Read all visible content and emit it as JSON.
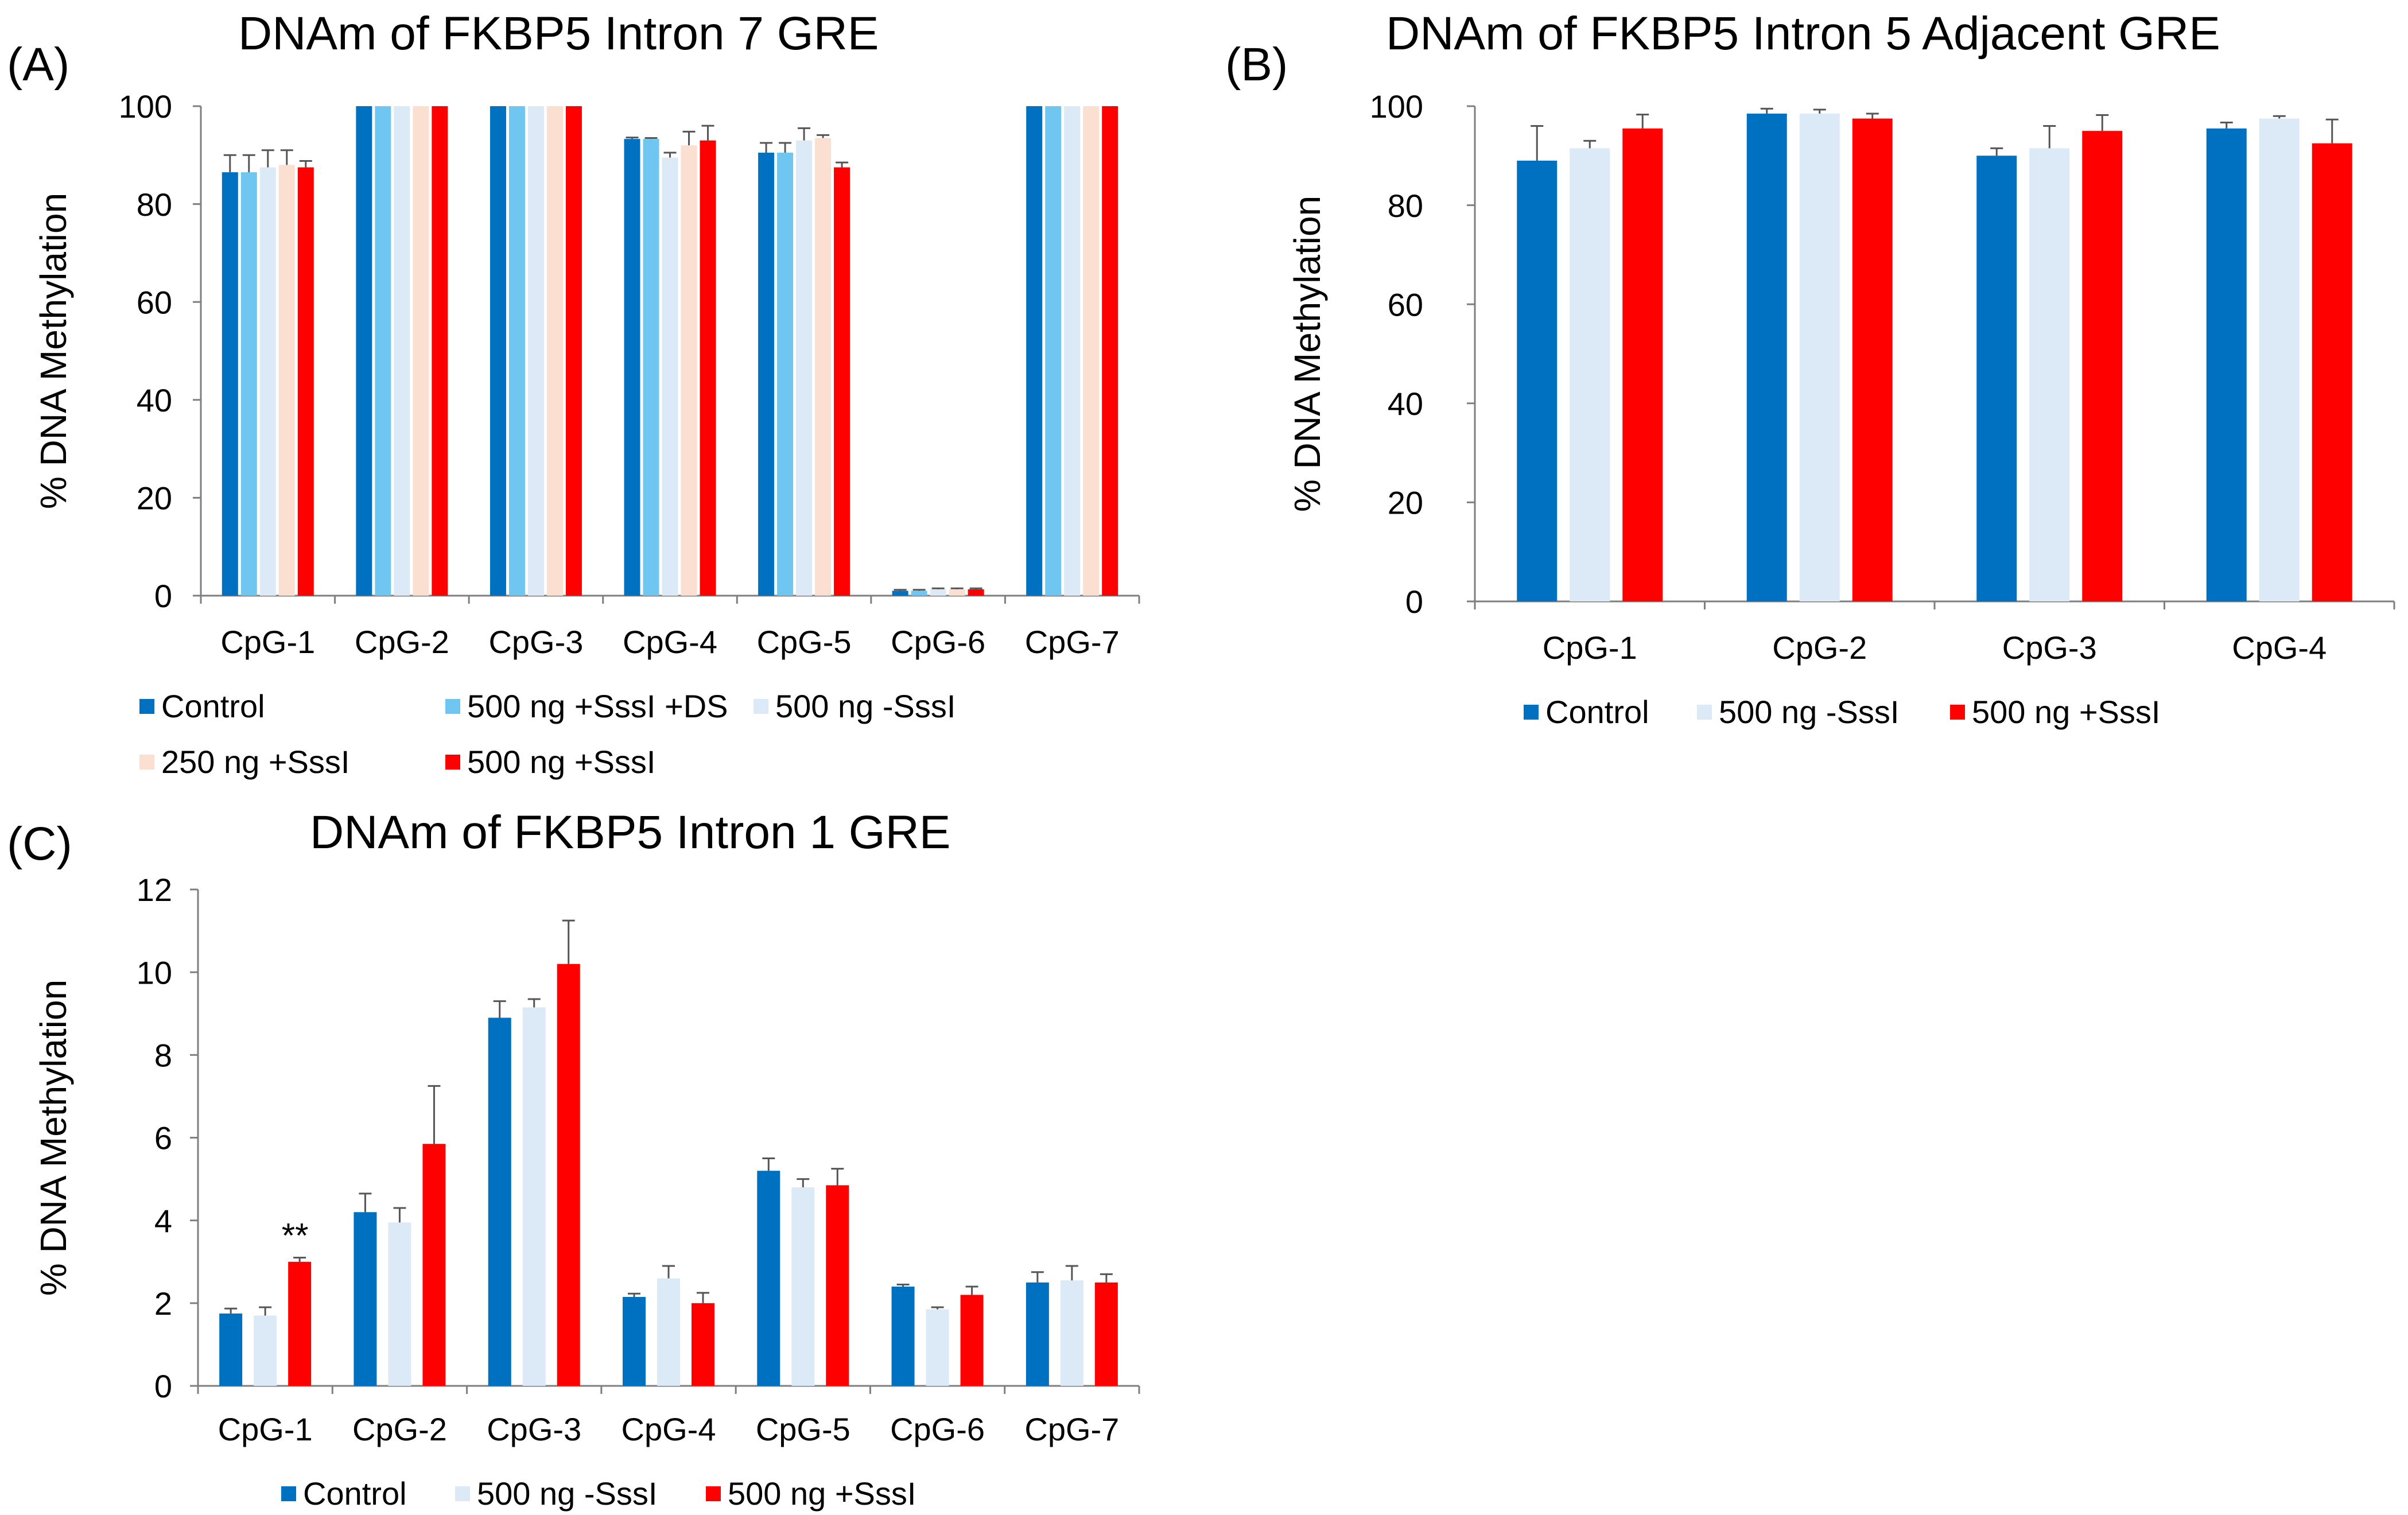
{
  "series_colors": {
    "Control": "#0070c0",
    "500 ng +SssI +DS": "#6fc6f0",
    "500 ng -SssI": "#dce9f7",
    "250 ng +SssI": "#fbdfd0",
    "500 ng +SssI": "#ff0000"
  },
  "chart_data": [
    {
      "id": "A",
      "panel_label": "(A)",
      "type": "bar",
      "title": "DNAm of FKBP5 Intron 7 GRE",
      "xlabel": "",
      "ylabel": "% DNA Methylation",
      "ylim": [
        0,
        100
      ],
      "yticks": [
        "0",
        "20",
        "40",
        "60",
        "80",
        "100"
      ],
      "grid": false,
      "categories": [
        "CpG-1",
        "CpG-2",
        "CpG-3",
        "CpG-4",
        "CpG-5",
        "CpG-6",
        "CpG-7"
      ],
      "series": [
        {
          "name": "Control",
          "values": [
            86.5,
            100,
            100,
            93.3,
            90.5,
            1.0,
            100
          ],
          "errors": [
            3.5,
            0,
            0,
            0.3,
            2.0,
            0.2,
            0
          ]
        },
        {
          "name": "500 ng +SssI +DS",
          "values": [
            86.5,
            100,
            100,
            93.3,
            90.5,
            1.0,
            100
          ],
          "errors": [
            3.5,
            0,
            0,
            0.2,
            2.0,
            0.2,
            0
          ]
        },
        {
          "name": "500 ng -SssI",
          "values": [
            87.5,
            100,
            100,
            89.5,
            93.0,
            1.3,
            100
          ],
          "errors": [
            3.5,
            0,
            0,
            1.0,
            2.5,
            0.2,
            0
          ]
        },
        {
          "name": "250 ng +SssI",
          "values": [
            88.0,
            100,
            100,
            92.0,
            93.5,
            1.3,
            100
          ],
          "errors": [
            3.0,
            0,
            0,
            2.8,
            0.6,
            0.2,
            0
          ]
        },
        {
          "name": "500 ng +SssI",
          "values": [
            87.5,
            100,
            100,
            93.0,
            87.5,
            1.3,
            100
          ],
          "errors": [
            1.3,
            0,
            0,
            3.0,
            1.0,
            0.2,
            0
          ]
        }
      ],
      "annotations": [],
      "legend": [
        "Control",
        "500 ng +SssI +DS",
        "500 ng -SssI",
        "250 ng +SssI",
        "500 ng +SssI"
      ],
      "legend_placement": "bottom"
    },
    {
      "id": "B",
      "panel_label": "(B)",
      "type": "bar",
      "title": "DNAm of FKBP5 Intron 5 Adjacent GRE",
      "xlabel": "",
      "ylabel": "% DNA Methylation",
      "ylim": [
        0,
        100
      ],
      "yticks": [
        "0",
        "20",
        "40",
        "60",
        "80",
        "100"
      ],
      "grid": false,
      "categories": [
        "CpG-1",
        "CpG-2",
        "CpG-3",
        "CpG-4"
      ],
      "series": [
        {
          "name": "Control",
          "values": [
            89,
            98.5,
            90,
            95.5
          ],
          "errors": [
            7,
            1,
            1.5,
            1.2
          ]
        },
        {
          "name": "500 ng -SssI",
          "values": [
            91.5,
            98.5,
            91.5,
            97.5
          ],
          "errors": [
            1.5,
            0.8,
            4.5,
            0.5
          ]
        },
        {
          "name": "500 ng +SssI",
          "values": [
            95.5,
            97.5,
            95,
            92.5
          ],
          "errors": [
            2.8,
            1,
            3.2,
            4.8
          ]
        }
      ],
      "annotations": [],
      "legend": [
        "Control",
        "500 ng -SssI",
        "500 ng +SssI"
      ],
      "legend_placement": "bottom"
    },
    {
      "id": "C",
      "panel_label": "(C)",
      "type": "bar",
      "title": "DNAm of FKBP5 Intron 1 GRE",
      "xlabel": "",
      "ylabel": "% DNA Methylation",
      "ylim": [
        0,
        12
      ],
      "yticks": [
        "0",
        "2",
        "4",
        "6",
        "8",
        "10",
        "12"
      ],
      "grid": false,
      "categories": [
        "CpG-1",
        "CpG-2",
        "CpG-3",
        "CpG-4",
        "CpG-5",
        "CpG-6",
        "CpG-7"
      ],
      "series": [
        {
          "name": "Control",
          "values": [
            1.75,
            4.2,
            8.9,
            2.15,
            5.2,
            2.4,
            2.5
          ],
          "errors": [
            0.12,
            0.45,
            0.4,
            0.08,
            0.3,
            0.05,
            0.25
          ]
        },
        {
          "name": "500 ng -SssI",
          "values": [
            1.7,
            3.95,
            9.15,
            2.6,
            4.8,
            1.85,
            2.55
          ],
          "errors": [
            0.2,
            0.35,
            0.2,
            0.3,
            0.2,
            0.05,
            0.35
          ]
        },
        {
          "name": "500 ng +SssI",
          "values": [
            3.0,
            5.85,
            10.2,
            2.0,
            4.85,
            2.2,
            2.5
          ],
          "errors": [
            0.1,
            1.4,
            1.05,
            0.25,
            0.4,
            0.2,
            0.2
          ]
        }
      ],
      "annotations": [
        {
          "category": "CpG-1",
          "series": "500 ng +SssI",
          "text": "**"
        }
      ],
      "legend": [
        "Control",
        "500 ng -SssI",
        "500 ng +SssI"
      ],
      "legend_placement": "bottom"
    }
  ]
}
